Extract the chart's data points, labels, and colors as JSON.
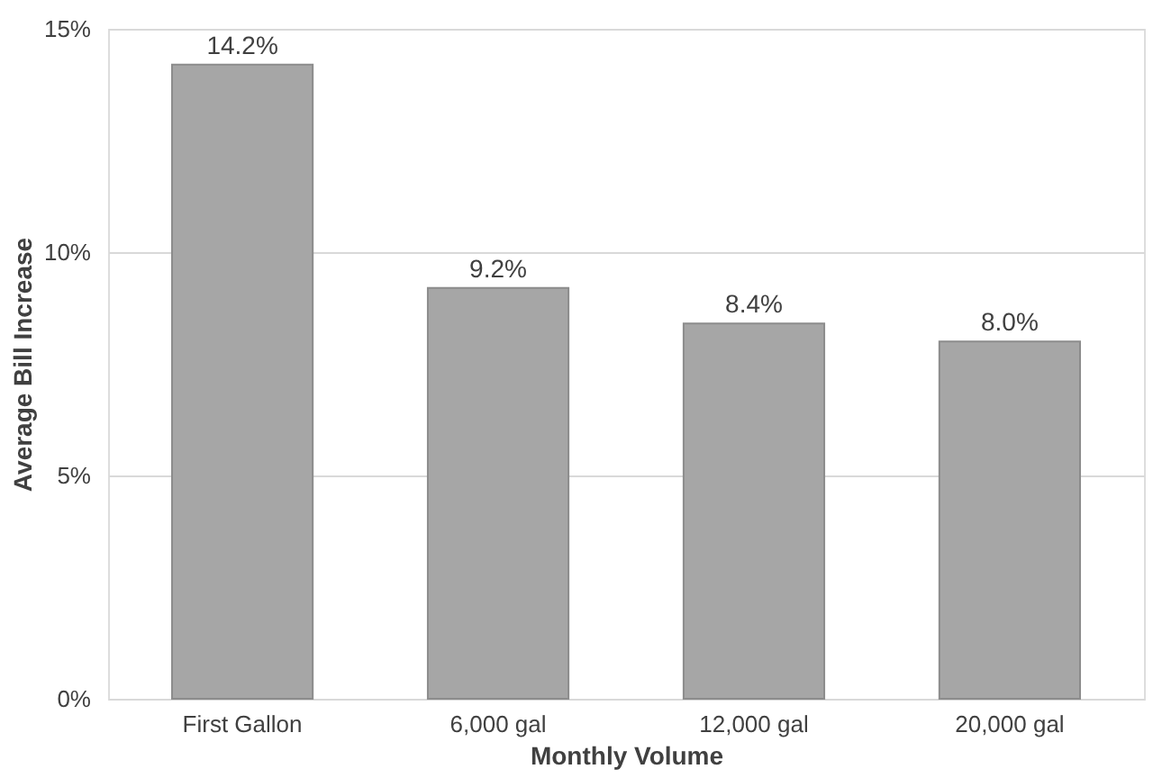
{
  "chart_data": {
    "type": "bar",
    "xlabel": "Monthly Volume",
    "ylabel": "Average Bill Increase",
    "categories": [
      "First Gallon",
      "6,000 gal",
      "12,000 gal",
      "20,000 gal"
    ],
    "values": [
      14.2,
      9.2,
      8.4,
      8.0
    ],
    "value_labels": [
      "14.2%",
      "9.2%",
      "8.4%",
      "8.0%"
    ],
    "color": "#a6a6a6",
    "ylim": [
      0,
      15
    ],
    "yticks": [
      {
        "value": 0,
        "label": "0%"
      },
      {
        "value": 5,
        "label": "5%"
      },
      {
        "value": 10,
        "label": "10%"
      },
      {
        "value": 15,
        "label": "15%"
      }
    ],
    "grid": "y"
  }
}
